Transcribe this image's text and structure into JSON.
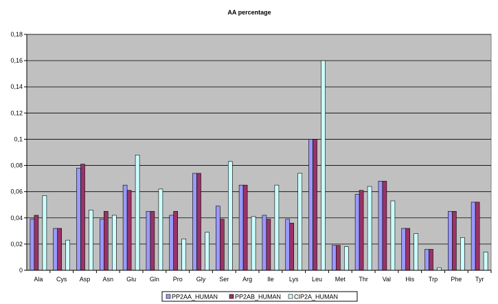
{
  "chart_data": {
    "type": "bar",
    "title": "AA percentage",
    "xlabel": "",
    "ylabel": "",
    "ylim": [
      0,
      0.18
    ],
    "yticks": [
      "0",
      "0,02",
      "0,04",
      "0,06",
      "0,08",
      "0,1",
      "0,12",
      "0,14",
      "0,16",
      "0,18"
    ],
    "grid": true,
    "legend_position": "bottom",
    "plot_background": "#c0c0c0",
    "categories": [
      "Ala",
      "Cys",
      "Asp",
      "Asn",
      "Glu",
      "Gln",
      "Pro",
      "Gly",
      "Ser",
      "Arg",
      "Ile",
      "Lys",
      "Leu",
      "Met",
      "Thr",
      "Val",
      "His",
      "Trp",
      "Phe",
      "Tyr"
    ],
    "series": [
      {
        "name": "PP2AA_HUMAN",
        "color": "#9999ff",
        "values": [
          0.039,
          0.032,
          0.078,
          0.039,
          0.065,
          0.045,
          0.042,
          0.074,
          0.049,
          0.065,
          0.042,
          0.039,
          0.1,
          0.019,
          0.058,
          0.068,
          0.032,
          0.016,
          0.045,
          0.052
        ]
      },
      {
        "name": "PP2AB_HUMAN",
        "color": "#993366",
        "values": [
          0.042,
          0.032,
          0.081,
          0.045,
          0.061,
          0.045,
          0.045,
          0.074,
          0.039,
          0.065,
          0.039,
          0.036,
          0.1,
          0.019,
          0.061,
          0.068,
          0.032,
          0.016,
          0.045,
          0.052
        ]
      },
      {
        "name": "CIP2A_HUMAN",
        "color": "#ccffff",
        "values": [
          0.057,
          0.023,
          0.046,
          0.042,
          0.088,
          0.062,
          0.024,
          0.029,
          0.083,
          0.041,
          0.065,
          0.074,
          0.16,
          0.018,
          0.064,
          0.053,
          0.028,
          0.002,
          0.025,
          0.014
        ]
      }
    ]
  }
}
